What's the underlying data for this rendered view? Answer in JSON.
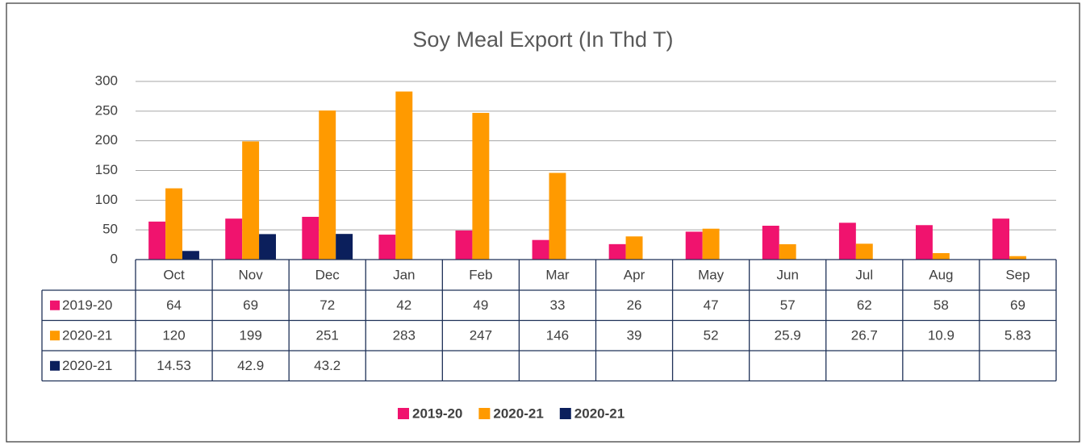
{
  "chart_data": {
    "type": "bar",
    "title": "Soy Meal Export (In Thd T)",
    "categories": [
      "Oct",
      "Nov",
      "Dec",
      "Jan",
      "Feb",
      "Mar",
      "Apr",
      "May",
      "Jun",
      "Jul",
      "Aug",
      "Sep"
    ],
    "series": [
      {
        "name": "2019-20",
        "color": "#f0136e",
        "values": [
          64,
          69,
          72,
          42,
          49,
          33,
          26,
          47,
          57,
          62,
          58,
          69
        ]
      },
      {
        "name": "2020-21",
        "color": "#ff9a00",
        "values": [
          120,
          199,
          251,
          283,
          247,
          146,
          39,
          52,
          25.9,
          26.7,
          10.9,
          5.83
        ]
      },
      {
        "name": "2020-21",
        "color": "#0b1f5c",
        "values": [
          14.53,
          42.9,
          43.2,
          null,
          null,
          null,
          null,
          null,
          null,
          null,
          null,
          null
        ]
      }
    ],
    "ylim": [
      0,
      300
    ],
    "yticks": [
      0,
      50,
      100,
      150,
      200,
      250,
      300
    ],
    "grid": true,
    "legend": "bottom"
  }
}
